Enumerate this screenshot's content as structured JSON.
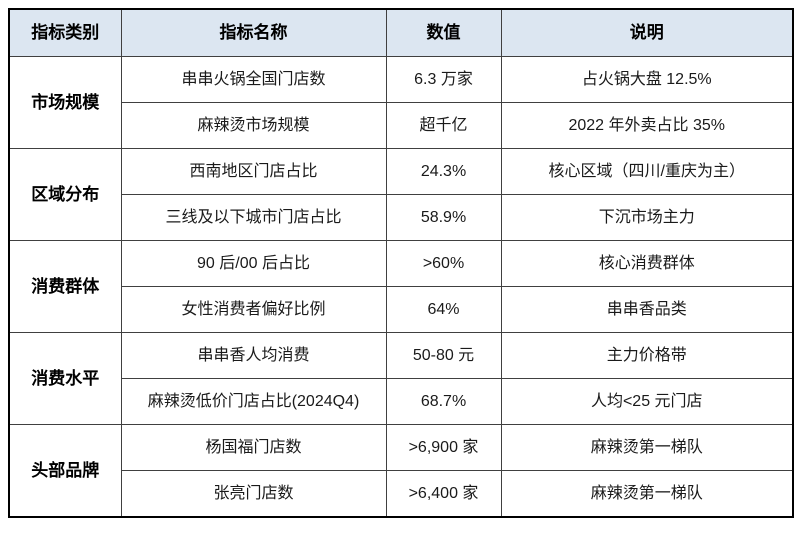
{
  "page": {
    "background_color": "#ffffff",
    "header_bg_color": "#dce6f1",
    "grid_border_color": "#404040",
    "outer_border_color": "#000000",
    "text_color": "#1a1a1a"
  },
  "table": {
    "headers": [
      "指标类别",
      "指标名称",
      "数值",
      "说明"
    ],
    "groups": [
      {
        "category": "市场规模",
        "rows": [
          {
            "name": "串串火锅全国门店数",
            "value": "6.3 万家",
            "note": "占火锅大盘 12.5%"
          },
          {
            "name": "麻辣烫市场规模",
            "value": "超千亿",
            "note": "2022 年外卖占比 35%"
          }
        ]
      },
      {
        "category": "区域分布",
        "rows": [
          {
            "name": "西南地区门店占比",
            "value": "24.3%",
            "note": "核心区域（四川/重庆为主）"
          },
          {
            "name": "三线及以下城市门店占比",
            "value": "58.9%",
            "note": "下沉市场主力"
          }
        ]
      },
      {
        "category": "消费群体",
        "rows": [
          {
            "name": "90 后/00 后占比",
            "value": ">60%",
            "note": "核心消费群体"
          },
          {
            "name": "女性消费者偏好比例",
            "value": "64%",
            "note": "串串香品类"
          }
        ]
      },
      {
        "category": "消费水平",
        "rows": [
          {
            "name": "串串香人均消费",
            "value": "50-80 元",
            "note": "主力价格带"
          },
          {
            "name": "麻辣烫低价门店占比(2024Q4)",
            "value": "68.7%",
            "note": "人均<25 元门店"
          }
        ]
      },
      {
        "category": "头部品牌",
        "rows": [
          {
            "name": "杨国福门店数",
            "value": ">6,900 家",
            "note": "麻辣烫第一梯队"
          },
          {
            "name": "张亮门店数",
            "value": ">6,400 家",
            "note": "麻辣烫第一梯队"
          }
        ]
      }
    ]
  }
}
